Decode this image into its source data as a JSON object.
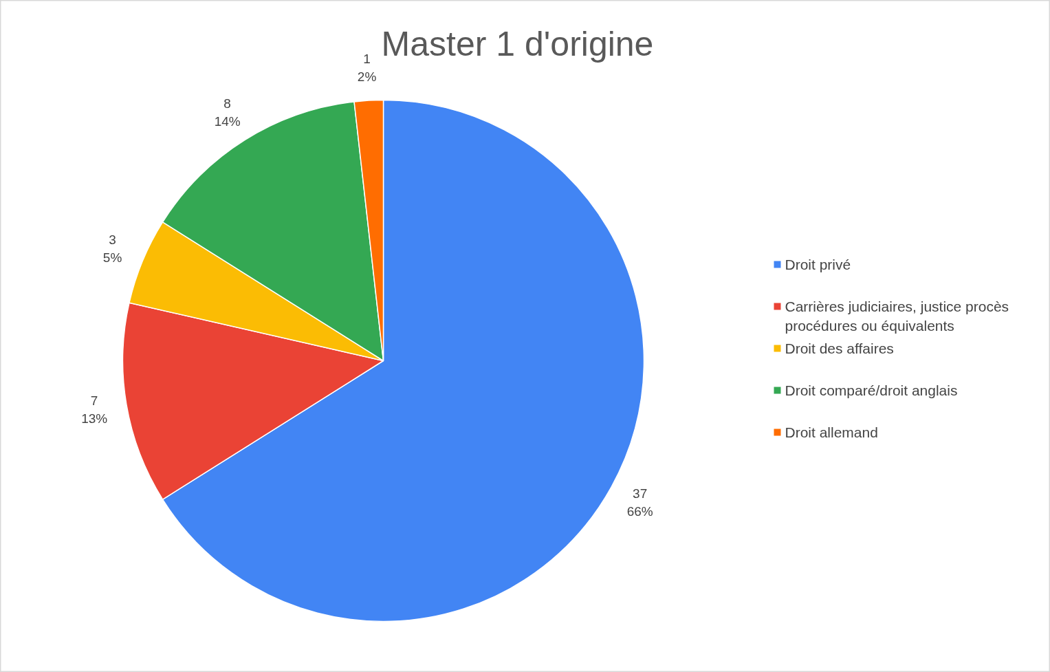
{
  "chart_data": {
    "type": "pie",
    "title": "Master 1 d'origine",
    "categories": [
      "Droit privé",
      "Carrières judiciaires, justice procès procédures ou équivalents",
      "Droit des affaires",
      "Droit comparé/droit anglais",
      "Droit allemand"
    ],
    "values": [
      37,
      7,
      3,
      8,
      1
    ],
    "colors": [
      "#4285f4",
      "#ea4335",
      "#fbbc04",
      "#34a853",
      "#ff6d01"
    ],
    "value_labels": [
      "37\n66%",
      "7\n13%",
      "3\n5%",
      "8\n14%",
      "1\n2%"
    ],
    "legend": "right"
  }
}
